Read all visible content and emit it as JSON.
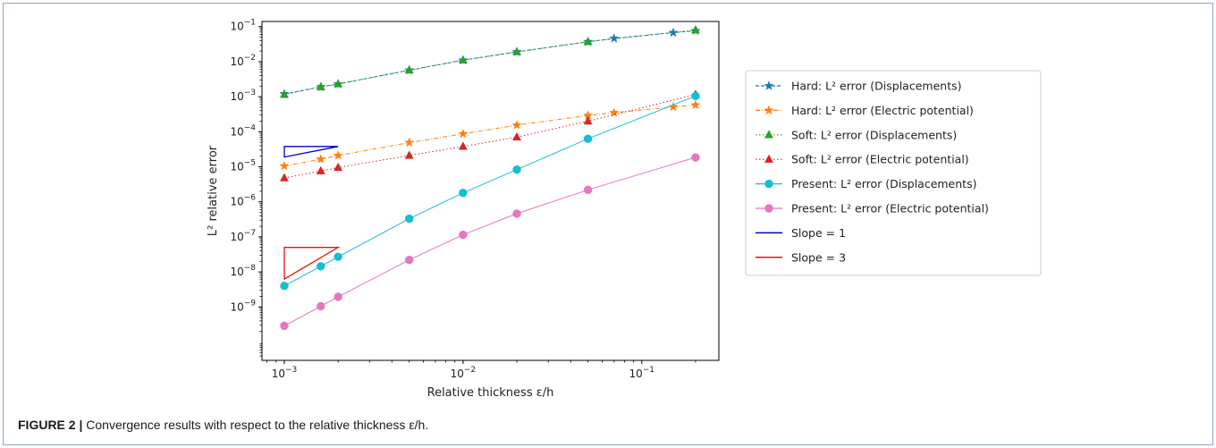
{
  "figure": {
    "caption_label": "FIGURE 2 |",
    "caption_text": "Convergence results with respect to the relative thickness ε/h."
  },
  "chart_data": {
    "type": "line",
    "xlabel": "Relative thickness ε/h",
    "ylabel": "L² relative error",
    "xscale": "log",
    "yscale": "log",
    "xlim": [
      0.00075,
      0.27
    ],
    "ylim": [
      3e-11,
      0.14
    ],
    "xticks": [
      {
        "value": 0.001,
        "base": "10",
        "exp": "−3"
      },
      {
        "value": 0.01,
        "base": "10",
        "exp": "−2"
      },
      {
        "value": 0.1,
        "base": "10",
        "exp": "−1"
      }
    ],
    "yticks": [
      {
        "value": 1e-09,
        "base": "10",
        "exp": "−9"
      },
      {
        "value": 1e-08,
        "base": "10",
        "exp": "−8"
      },
      {
        "value": 1e-07,
        "base": "10",
        "exp": "−7"
      },
      {
        "value": 1e-06,
        "base": "10",
        "exp": "−6"
      },
      {
        "value": 1e-05,
        "base": "10",
        "exp": "−5"
      },
      {
        "value": 0.0001,
        "base": "10",
        "exp": "−4"
      },
      {
        "value": 0.001,
        "base": "10",
        "exp": "−3"
      },
      {
        "value": 0.01,
        "base": "10",
        "exp": "−2"
      },
      {
        "value": 0.1,
        "base": "10",
        "exp": "−1"
      }
    ],
    "grid": false,
    "legend_position": "outside-right",
    "series": [
      {
        "name": "Hard: L² error (Displacements)",
        "color": "#1f77b4",
        "marker": "star",
        "dash": "dashed",
        "x": [
          0.001,
          0.0016,
          0.002,
          0.005,
          0.01,
          0.02,
          0.05,
          0.07,
          0.15,
          0.2
        ],
        "y": [
          0.0012,
          0.0019,
          0.0023,
          0.0057,
          0.011,
          0.019,
          0.037,
          0.046,
          0.067,
          0.076
        ]
      },
      {
        "name": "Hard: L² error (Electric potential)",
        "color": "#ff7f0e",
        "marker": "star",
        "dash": "dashdot",
        "x": [
          0.001,
          0.0016,
          0.002,
          0.005,
          0.01,
          0.02,
          0.05,
          0.07,
          0.15,
          0.2
        ],
        "y": [
          1.05e-05,
          1.65e-05,
          2.1e-05,
          4.9e-05,
          8.7e-05,
          0.000155,
          0.00029,
          0.00035,
          0.00051,
          0.00058
        ]
      },
      {
        "name": "Soft: L² error (Displacements)",
        "color": "#2ca02c",
        "marker": "triangle",
        "dash": "dotted",
        "x": [
          0.001,
          0.0016,
          0.002,
          0.005,
          0.01,
          0.02,
          0.05,
          0.2
        ],
        "y": [
          0.00115,
          0.0019,
          0.0023,
          0.0057,
          0.011,
          0.019,
          0.037,
          0.08
        ]
      },
      {
        "name": "Soft: L² error (Electric potential)",
        "color": "#d62728",
        "marker": "triangle",
        "dash": "dotted",
        "x": [
          0.001,
          0.0016,
          0.002,
          0.005,
          0.01,
          0.02,
          0.05,
          0.2
        ],
        "y": [
          4.8e-06,
          7.6e-06,
          9.5e-06,
          2.1e-05,
          3.8e-05,
          7e-05,
          0.0002,
          0.00115
        ]
      },
      {
        "name": "Present: L² error (Displacements)",
        "color": "#17becf",
        "marker": "circle",
        "dash": "solid",
        "x": [
          0.001,
          0.0016,
          0.002,
          0.005,
          0.01,
          0.02,
          0.05,
          0.2
        ],
        "y": [
          4e-09,
          1.45e-08,
          2.7e-08,
          3.3e-07,
          1.8e-06,
          8.3e-06,
          6.3e-05,
          0.00105
        ]
      },
      {
        "name": "Present: L² error (Electric potential)",
        "color": "#e377c2",
        "marker": "circle",
        "dash": "solid",
        "x": [
          0.001,
          0.0016,
          0.002,
          0.005,
          0.01,
          0.02,
          0.05,
          0.2
        ],
        "y": [
          2.9e-10,
          1.05e-09,
          1.95e-09,
          2.2e-08,
          1.15e-07,
          4.6e-07,
          2.2e-06,
          1.85e-05
        ]
      },
      {
        "name": "Slope = 1",
        "color": "#0000cc",
        "kind": "triangle",
        "x": [
          0.001,
          0.001,
          0.002
        ],
        "y": [
          1.9e-05,
          3.8e-05,
          3.8e-05
        ]
      },
      {
        "name": "Slope = 3",
        "color": "#ee1111",
        "kind": "triangle",
        "x": [
          0.001,
          0.001,
          0.002
        ],
        "y": [
          6.25e-09,
          5e-08,
          5e-08
        ]
      }
    ]
  }
}
